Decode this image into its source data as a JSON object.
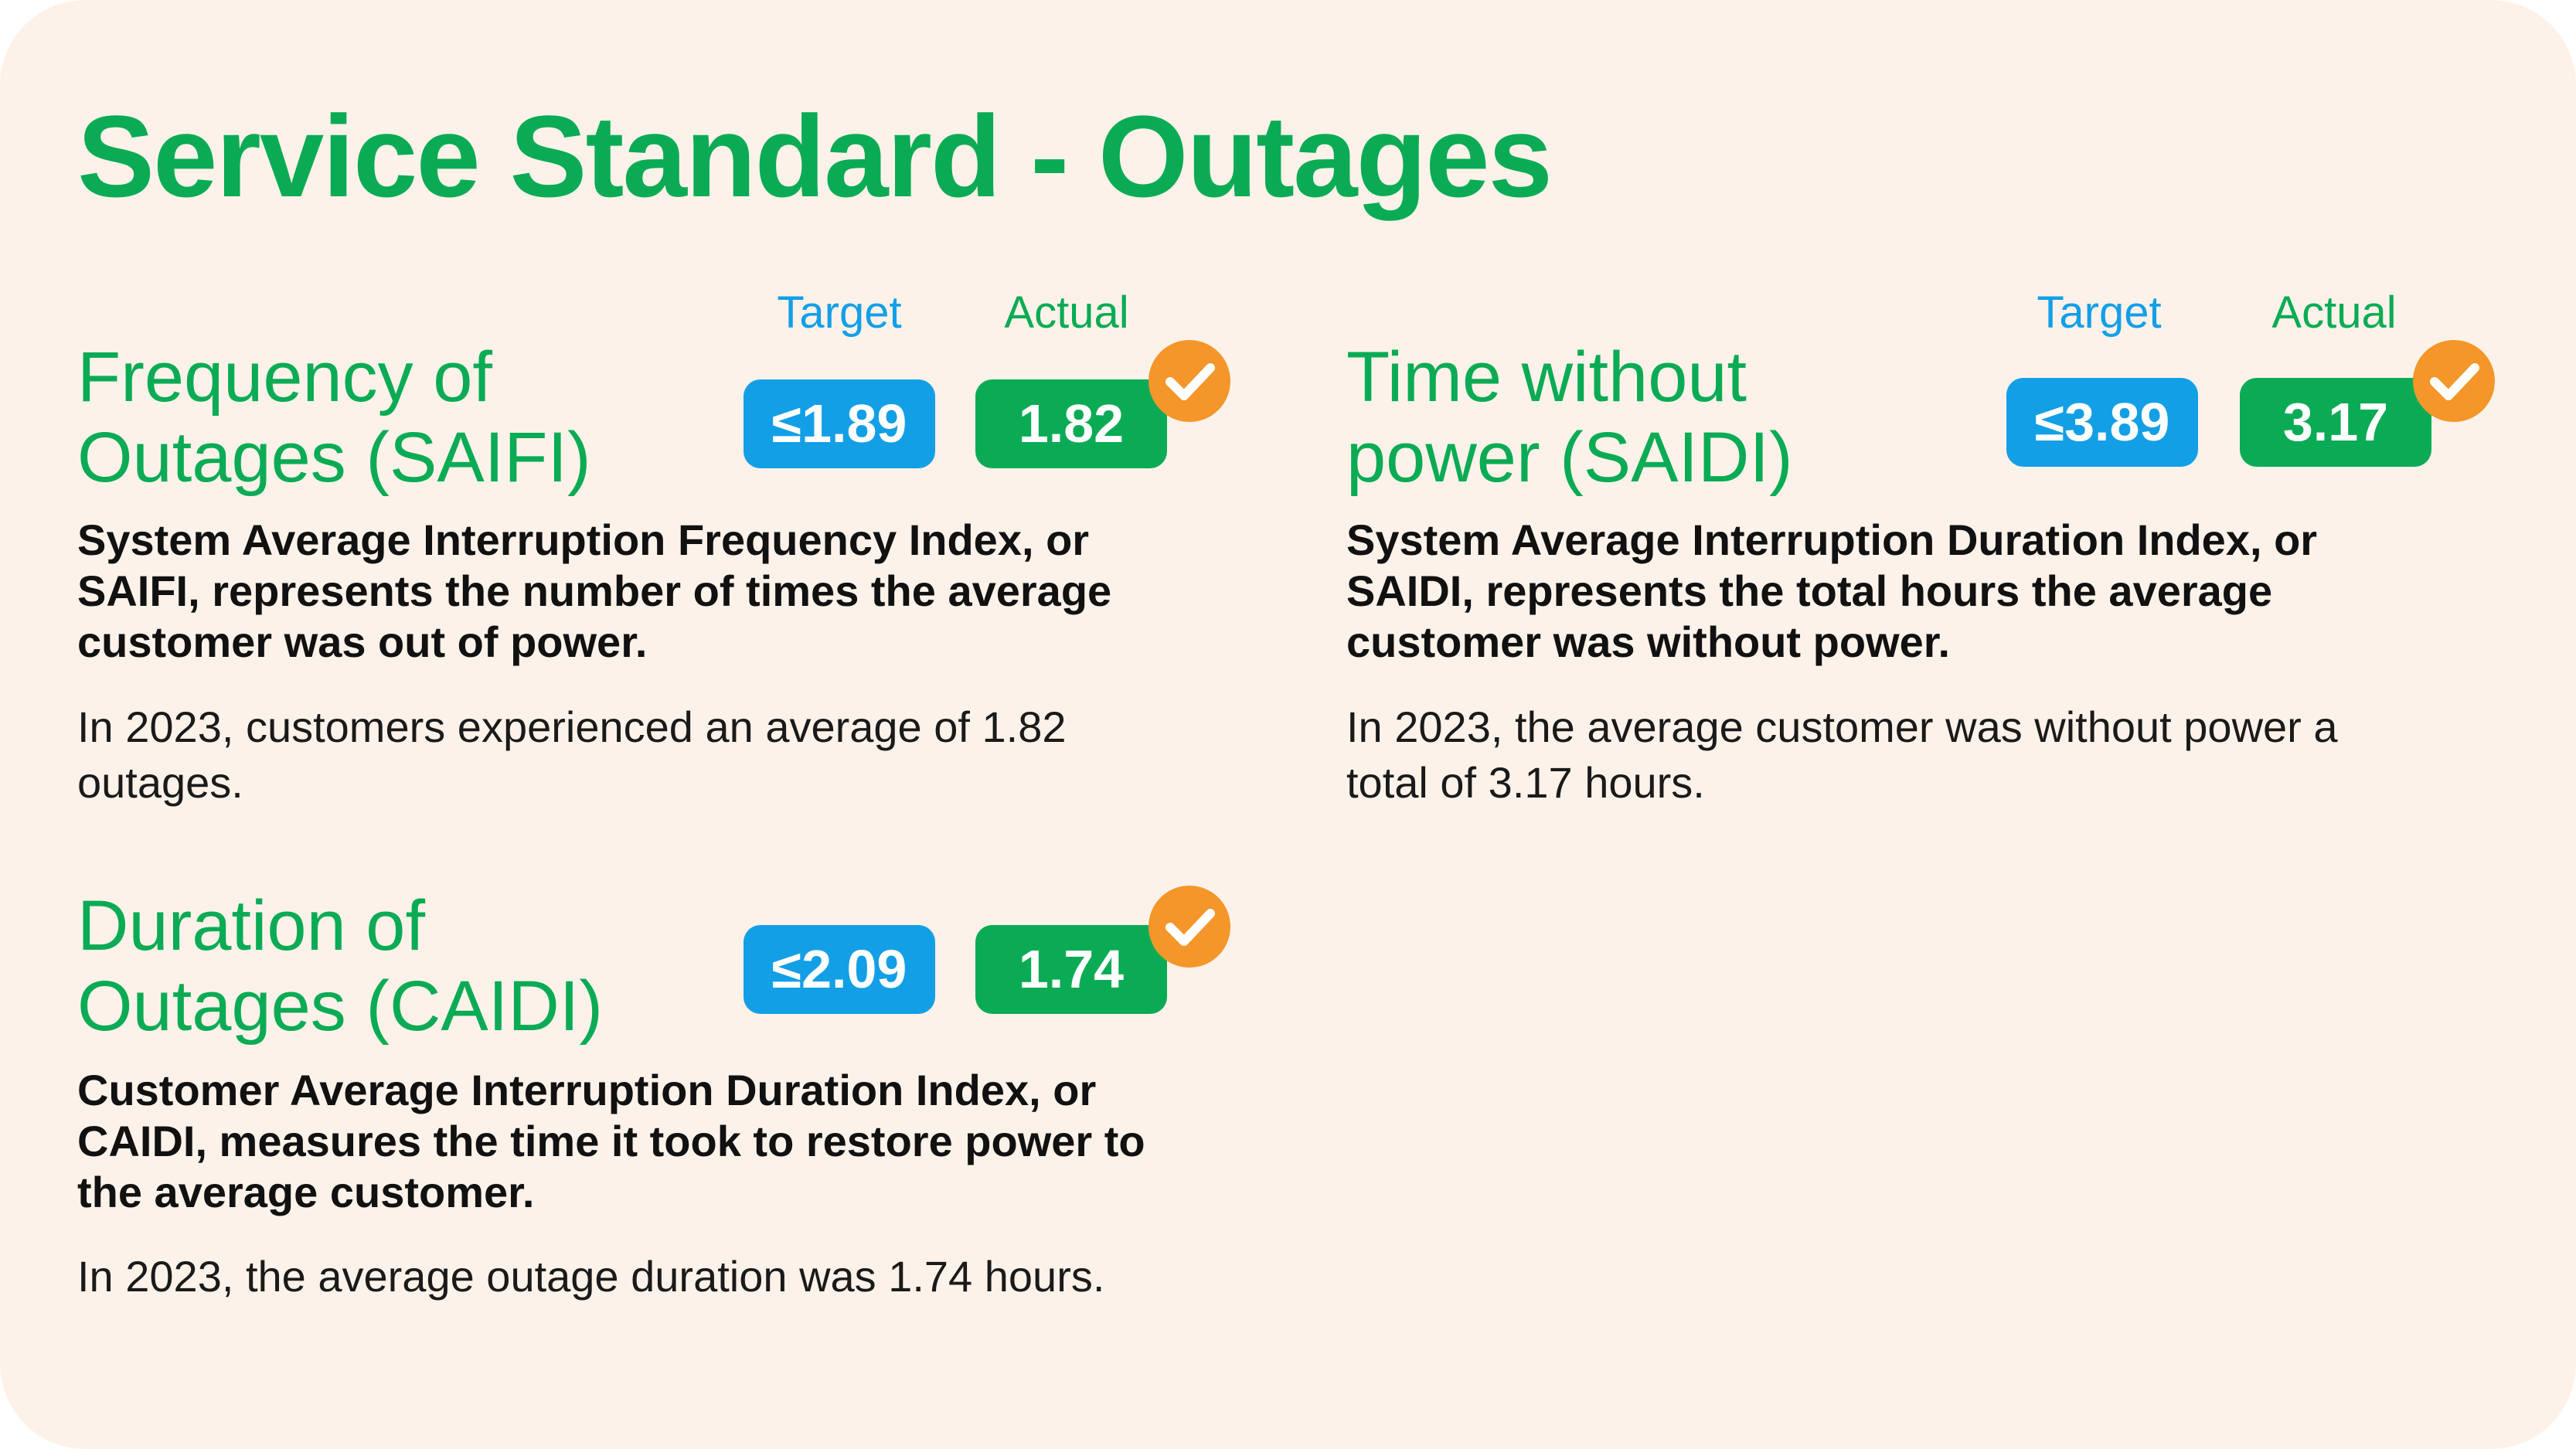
{
  "title": "Service Standard - Outages",
  "column_labels": {
    "target": "Target",
    "actual": "Actual"
  },
  "colors": {
    "background": "#fdf2ea",
    "green": "#0aab54",
    "blue": "#139fe6",
    "orange": "#f4962a"
  },
  "metrics": [
    {
      "title_line1": "Frequency of",
      "title_line2": "Outages (SAIFI)",
      "target": "≤1.89",
      "actual": "1.82",
      "target_met": true,
      "met_icon": "checkmark-icon",
      "definition": "System Average Interruption Frequency Index, or SAIFI, represents the number of times the average customer was out of power.",
      "summary": "In 2023, customers experienced an average of 1.82 outages."
    },
    {
      "title_line1": "Time without",
      "title_line2": "power (SAIDI)",
      "target": "≤3.89",
      "actual": "3.17",
      "target_met": true,
      "met_icon": "checkmark-icon",
      "definition": "System Average Interruption Duration Index, or SAIDI, represents the total hours the average customer was without power.",
      "summary": "In 2023, the average customer was without power a total of 3.17 hours."
    },
    {
      "title_line1": "Duration of",
      "title_line2": "Outages (CAIDI)",
      "target": "≤2.09",
      "actual": "1.74",
      "target_met": true,
      "met_icon": "checkmark-icon",
      "definition": "Customer Average Interruption Duration Index, or CAIDI, measures the time it took to restore power to the average customer.",
      "summary": "In 2023, the average outage duration was 1.74 hours."
    }
  ]
}
